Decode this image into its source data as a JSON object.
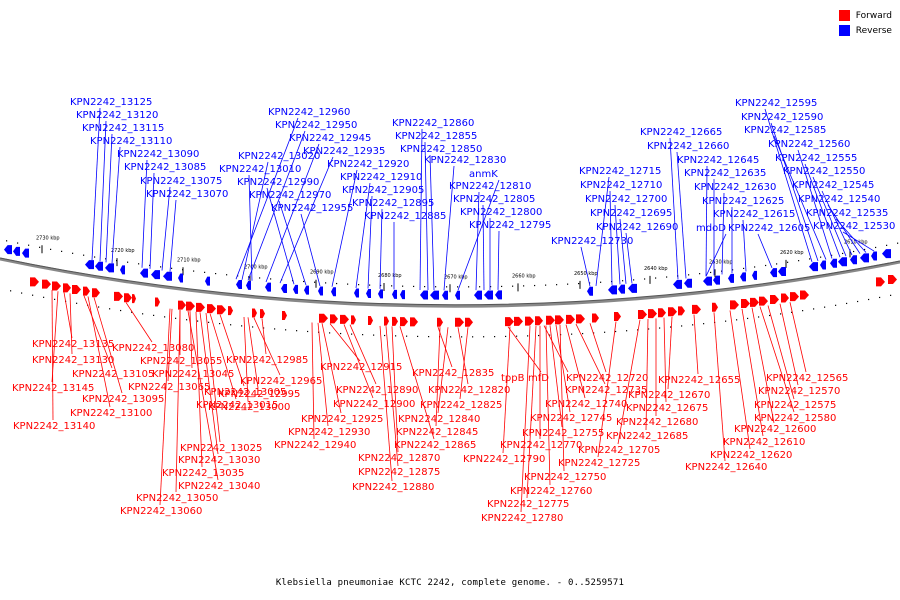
{
  "legend": {
    "forward_label": "Forward",
    "forward_color": "#ff0000",
    "reverse_label": "Reverse",
    "reverse_color": "#0000ff"
  },
  "caption": "Klebsiella pneumoniae KCTC 2242, complete genome. - 0..5259571",
  "scale_ticks": [
    "2730 kbp",
    "2720 kbp",
    "2710 kbp",
    "2700 kbp",
    "2690 kbp",
    "2680 kbp",
    "2670 kbp",
    "2660 kbp",
    "2650 kbp",
    "2640 kbp",
    "2630 kbp",
    "2620 kbp",
    "2610 kbp"
  ],
  "reverse_labels": [
    "KPN2242_13125",
    "KPN2242_13120",
    "KPN2242_13115",
    "KPN2242_13110",
    "KPN2242_13090",
    "KPN2242_13085",
    "KPN2242_13075",
    "KPN2242_13070",
    "KPN2242_12960",
    "KPN2242_12950",
    "KPN2242_12945",
    "KPN2242_12935",
    "KPN2242_13020",
    "KPN2242_13010",
    "KPN2242_12990",
    "KPN2242_12970",
    "KPN2242_12955",
    "KPN2242_12920",
    "KPN2242_12910",
    "KPN2242_12905",
    "KPN2242_12895",
    "KPN2242_12885",
    "KPN2242_12860",
    "KPN2242_12855",
    "KPN2242_12850",
    "KPN2242_12830",
    "anmK",
    "KPN2242_12810",
    "KPN2242_12805",
    "KPN2242_12800",
    "KPN2242_12795",
    "KPN2242_12715",
    "KPN2242_12710",
    "KPN2242_12700",
    "KPN2242_12695",
    "KPN2242_12690",
    "KPN2242_12730",
    "KPN2242_12665",
    "KPN2242_12660",
    "KPN2242_12645",
    "KPN2242_12635",
    "KPN2242_12630",
    "KPN2242_12625",
    "KPN2242_12615",
    "mdoD",
    "KPN2242_12605",
    "KPN2242_12595",
    "KPN2242_12590",
    "KPN2242_12585",
    "KPN2242_12560",
    "KPN2242_12555",
    "KPN2242_12550",
    "KPN2242_12545",
    "KPN2242_12540",
    "KPN2242_12535",
    "KPN2242_12530"
  ],
  "forward_labels": [
    "KPN2242_13135",
    "KPN2242_13130",
    "KPN2242_13145",
    "KPN2242_13140",
    "KPN2242_13105",
    "KPN2242_13095",
    "KPN2242_13100",
    "KPN2242_13080",
    "KPN2242_13055",
    "KPN2242_13045",
    "KPN2242_13065",
    "KPN2242_13005",
    "KPN2242_13015",
    "KPN2242_13025",
    "KPN2242_13030",
    "KPN2242_13035",
    "KPN2242_13040",
    "KPN2242_13050",
    "KPN2242_13060",
    "KPN2242_12985",
    "KPN2242_12965",
    "KPN2242_12995",
    "KPN2242_13000",
    "KPN2242_12915",
    "KPN2242_12890",
    "KPN2242_12900",
    "KPN2242_12925",
    "KPN2242_12930",
    "KPN2242_12940",
    "KPN2242_12865",
    "KPN2242_12870",
    "KPN2242_12875",
    "KPN2242_12880",
    "KPN2242_12835",
    "KPN2242_12820",
    "KPN2242_12825",
    "KPN2242_12840",
    "KPN2242_12845",
    "tppB",
    "mfD",
    "KPN2242_12735",
    "KPN2242_12740",
    "KPN2242_12745",
    "KPN2242_12755",
    "KPN2242_12770",
    "KPN2242_12790",
    "KPN2242_12750",
    "KPN2242_12760",
    "KPN2242_12775",
    "KPN2242_12780",
    "KPN2242_12720",
    "KPN2242_12725",
    "KPN2242_12705",
    "KPN2242_12685",
    "KPN2242_12680",
    "KPN2242_12675",
    "KPN2242_12670",
    "KPN2242_12655",
    "KPN2242_12640",
    "KPN2242_12620",
    "KPN2242_12610",
    "KPN2242_12600",
    "KPN2242_12580",
    "KPN2242_12575",
    "KPN2242_12570",
    "KPN2242_12565"
  ]
}
